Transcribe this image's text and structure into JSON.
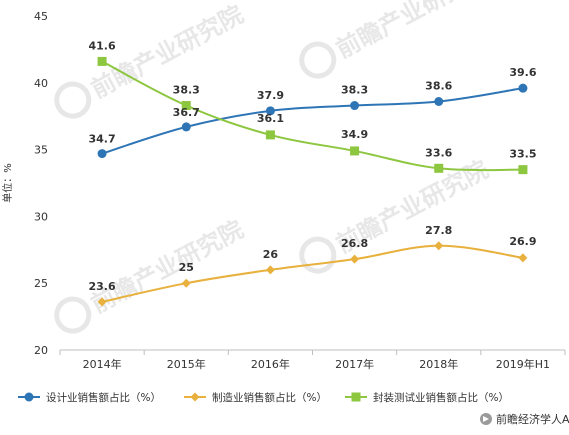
{
  "chart_data": {
    "type": "line",
    "categories": [
      "2014年",
      "2015年",
      "2016年",
      "2017年",
      "2018年",
      "2019年H1"
    ],
    "ylabel": "单位：%",
    "ylim": [
      20,
      45
    ],
    "yticks": [
      "20",
      "25",
      "30",
      "35",
      "40",
      "45"
    ],
    "grid": false,
    "legend_position": "bottom",
    "series": [
      {
        "name": "设计业销售额占比（%）",
        "color": "#2e75b6",
        "marker": "circle",
        "values": [
          34.7,
          36.7,
          37.9,
          38.3,
          38.6,
          39.6
        ],
        "labels": [
          "34.7",
          "36.7",
          "37.9",
          "38.3",
          "38.6",
          "39.6"
        ]
      },
      {
        "name": "制造业销售额占比（%）",
        "color": "#e8b03c",
        "marker": "diamond",
        "values": [
          23.6,
          25,
          26,
          26.8,
          27.8,
          26.9
        ],
        "labels": [
          "23.6",
          "25",
          "26",
          "26.8",
          "27.8",
          "26.9"
        ]
      },
      {
        "name": "封装测试业销售额占比（%）",
        "color": "#8dc63f",
        "marker": "square",
        "values": [
          41.6,
          38.3,
          36.1,
          34.9,
          33.6,
          33.5
        ],
        "labels": [
          "41.6",
          "38.3",
          "36.1",
          "34.9",
          "33.6",
          "33.5"
        ]
      }
    ]
  },
  "watermark": "前瞻产业研究院",
  "source": "前瞻经济学人APP"
}
